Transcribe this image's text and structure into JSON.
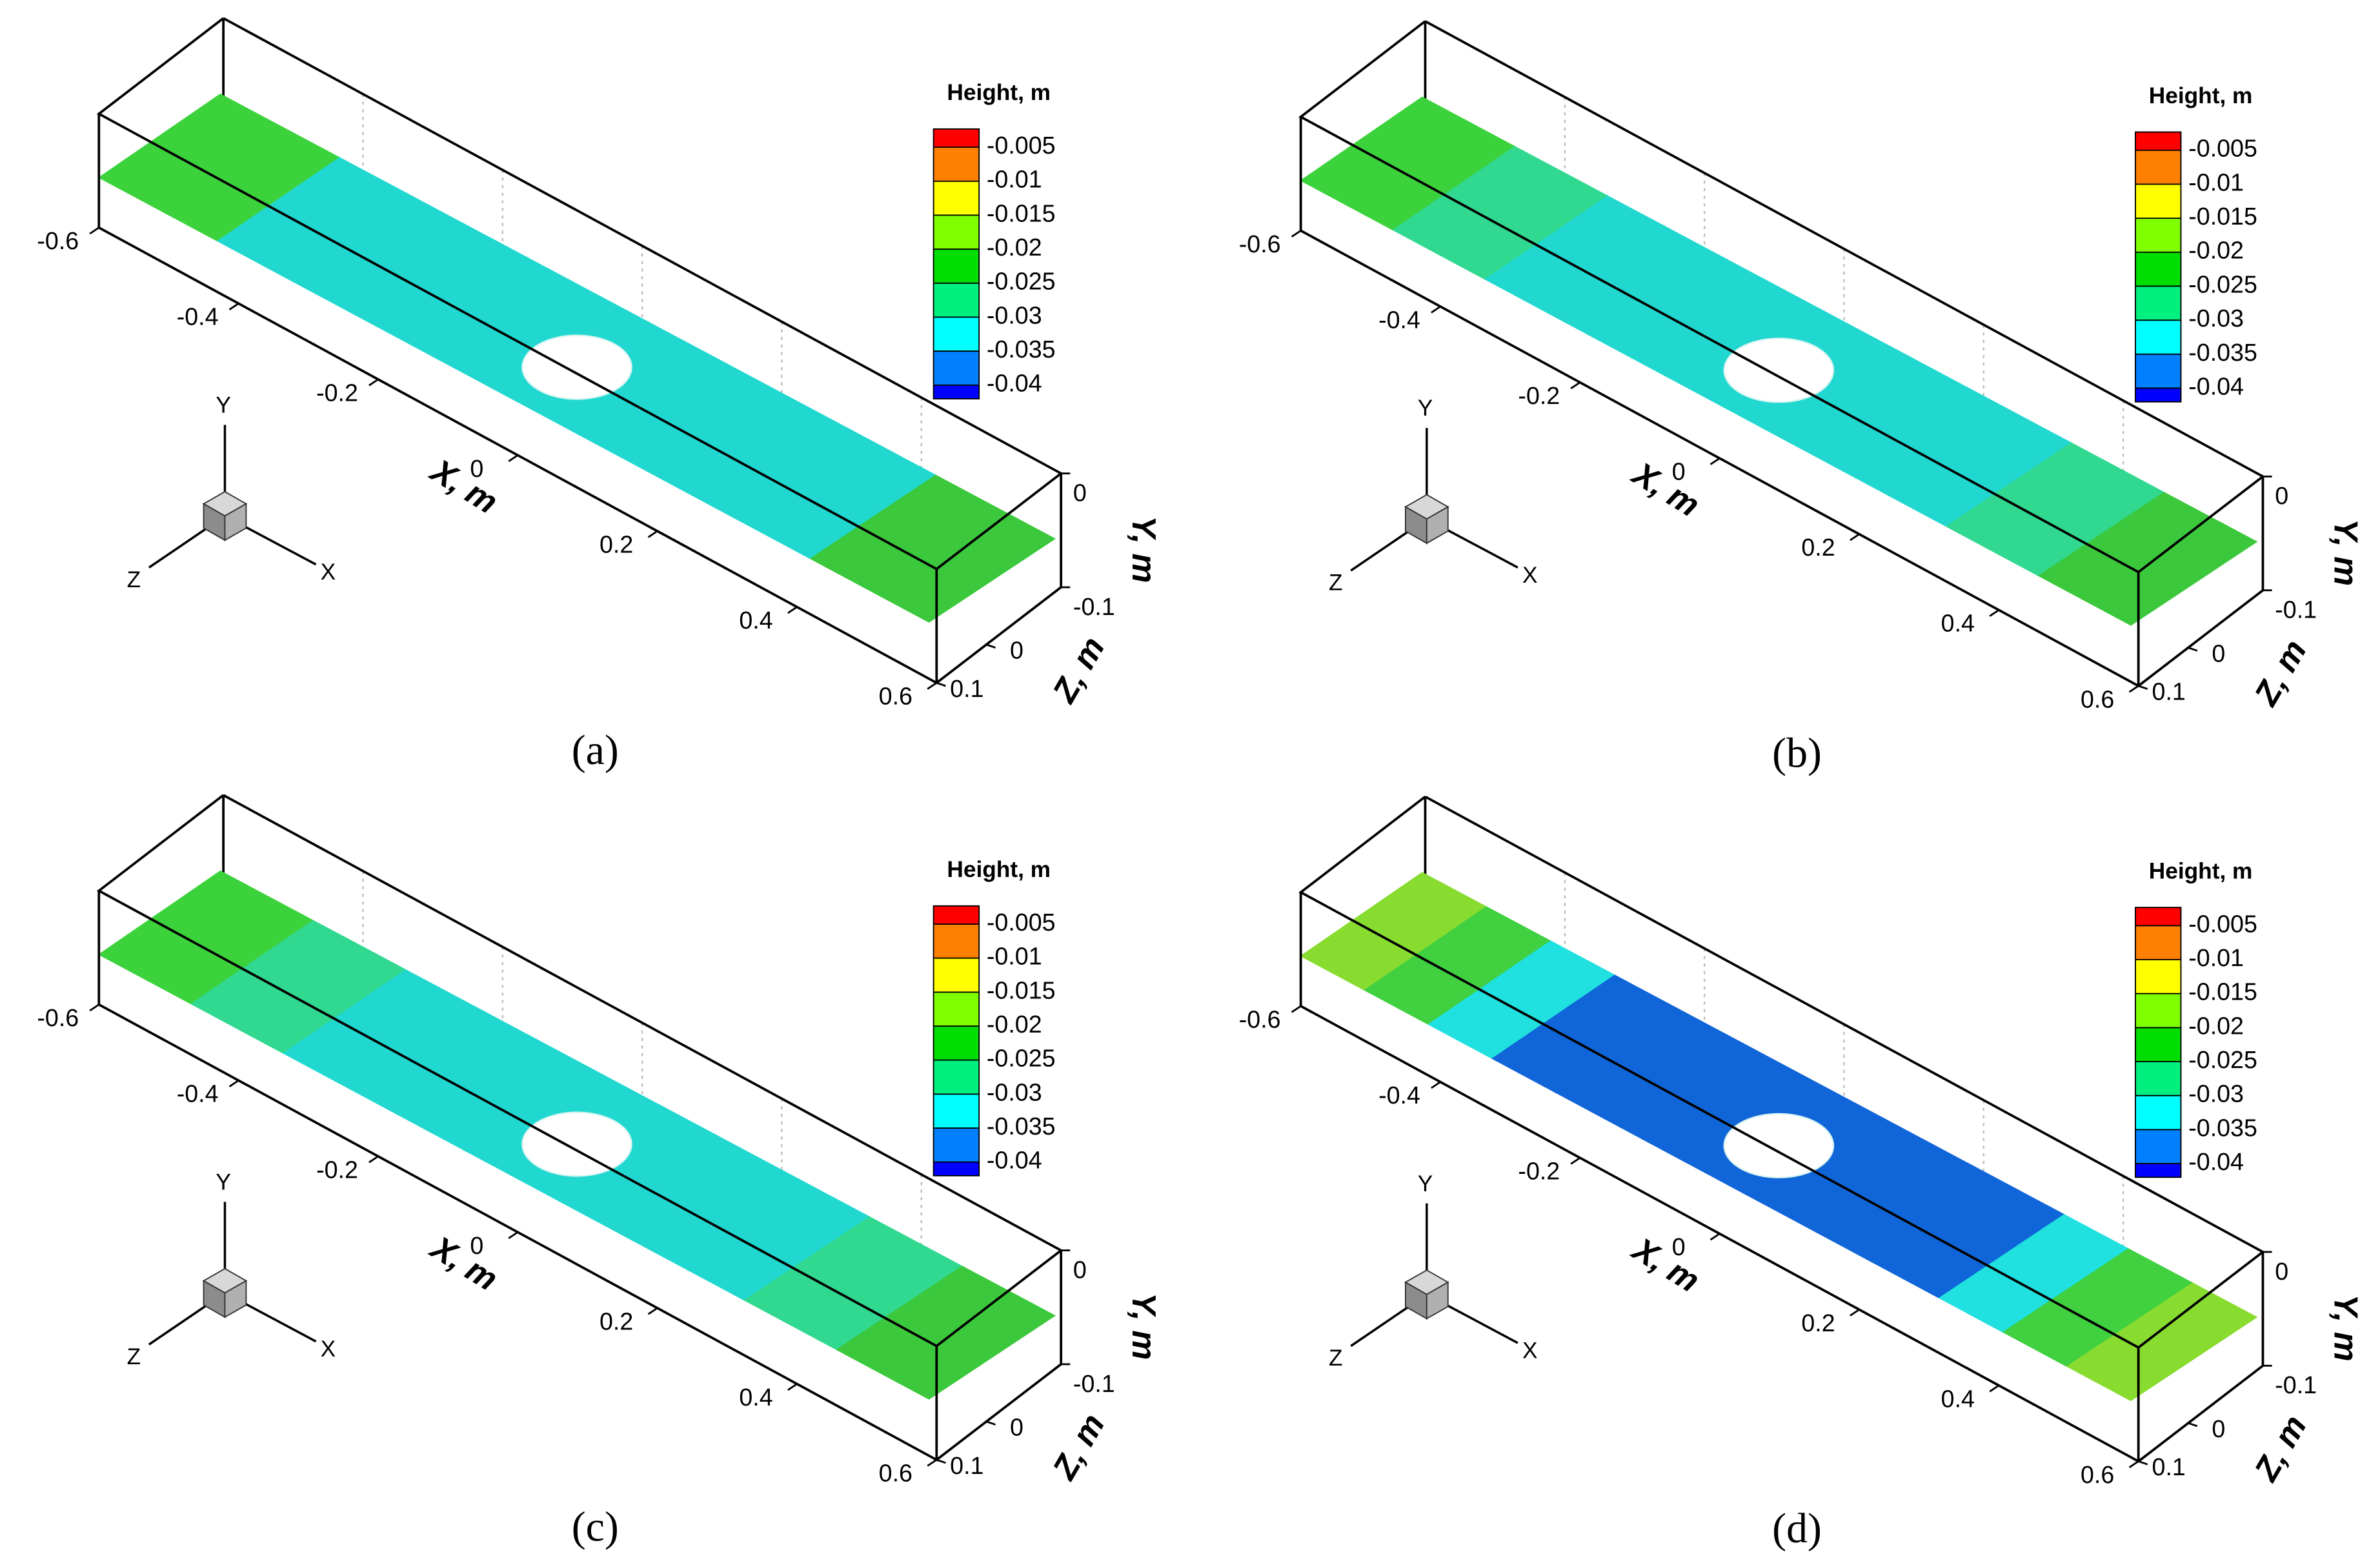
{
  "chart_data": [
    {
      "type": "contour3d",
      "label": "(a)",
      "legend_title": "Height, m",
      "levels": [
        -0.005,
        -0.01,
        -0.015,
        -0.02,
        -0.025,
        -0.03,
        -0.035,
        -0.04
      ],
      "colors": [
        "#ff0000",
        "#ff8000",
        "#ffff00",
        "#80ff00",
        "#00dd00",
        "#00f080",
        "#00ffff",
        "#0080ff",
        "#0000ff"
      ],
      "surface_colors": [
        "#3cd23c",
        "#20d8d0",
        "#20d8d0",
        "#20d8d0",
        "#20d8d0",
        "#20d8d0",
        "#3cc83c"
      ],
      "xlabel": "X, m",
      "ylabel": "Y, m",
      "zlabel": "Z, m",
      "xlim": [
        -0.6,
        0.6
      ],
      "xticks": [
        -0.6,
        -0.4,
        -0.2,
        0,
        0.2,
        0.4,
        0.6
      ],
      "ylim": [
        -0.1,
        0
      ],
      "yticks": [
        0,
        -0.1
      ],
      "zlim": [
        -0.15,
        0.1
      ],
      "zticks": [
        0,
        0.1
      ],
      "triad_labels": [
        "X",
        "Y",
        "Z"
      ],
      "grid": true
    },
    {
      "type": "contour3d",
      "label": "(b)",
      "legend_title": "Height, m",
      "levels": [
        -0.005,
        -0.01,
        -0.015,
        -0.02,
        -0.025,
        -0.03,
        -0.035,
        -0.04
      ],
      "colors": [
        "#ff0000",
        "#ff8000",
        "#ffff00",
        "#80ff00",
        "#00dd00",
        "#00f080",
        "#00ffff",
        "#0080ff",
        "#0000ff"
      ],
      "surface_colors": [
        "#3cd23c",
        "#30d890",
        "#20d8d0",
        "#20d8d0",
        "#20d8d0",
        "#20d8d0",
        "#20d8d0",
        "#30d890",
        "#3cc83c"
      ],
      "xlabel": "X, m",
      "ylabel": "Y, m",
      "zlabel": "Z, m",
      "xlim": [
        -0.6,
        0.6
      ],
      "xticks": [
        -0.6,
        -0.4,
        -0.2,
        0,
        0.2,
        0.4,
        0.6
      ],
      "ylim": [
        -0.1,
        0
      ],
      "yticks": [
        0,
        -0.1
      ],
      "zlim": [
        -0.15,
        0.1
      ],
      "zticks": [
        0,
        0.1
      ],
      "triad_labels": [
        "X",
        "Y",
        "Z"
      ],
      "grid": true
    },
    {
      "type": "contour3d",
      "label": "(c)",
      "legend_title": "Height, m",
      "levels": [
        -0.005,
        -0.01,
        -0.015,
        -0.02,
        -0.025,
        -0.03,
        -0.035,
        -0.04
      ],
      "colors": [
        "#ff0000",
        "#ff8000",
        "#ffff00",
        "#80ff00",
        "#00dd00",
        "#00f080",
        "#00ffff",
        "#0080ff",
        "#0000ff"
      ],
      "surface_colors": [
        "#3cd23c",
        "#30d890",
        "#20d8d0",
        "#20d8d0",
        "#20d8d0",
        "#20d8d0",
        "#20d8d0",
        "#30d890",
        "#3cc83c"
      ],
      "xlabel": "X, m",
      "ylabel": "Y, m",
      "zlabel": "Z, m",
      "xlim": [
        -0.6,
        0.6
      ],
      "xticks": [
        -0.6,
        -0.4,
        -0.2,
        0,
        0.2,
        0.4,
        0.6
      ],
      "ylim": [
        -0.1,
        0
      ],
      "yticks": [
        0,
        -0.1
      ],
      "zlim": [
        -0.15,
        0.1
      ],
      "zticks": [
        0,
        0.1
      ],
      "triad_labels": [
        "X",
        "Y",
        "Z"
      ],
      "grid": true
    },
    {
      "type": "contour3d",
      "label": "(d)",
      "legend_title": "Height, m",
      "levels": [
        -0.005,
        -0.01,
        -0.015,
        -0.02,
        -0.025,
        -0.03,
        -0.035,
        -0.04
      ],
      "colors": [
        "#ff0000",
        "#ff8000",
        "#ffff00",
        "#80ff00",
        "#00dd00",
        "#00f080",
        "#00ffff",
        "#0080ff",
        "#0000ff"
      ],
      "surface_colors": [
        "#88dc30",
        "#40d040",
        "#20e0e0",
        "#1066d8",
        "#1066d8",
        "#1066d8",
        "#1066d8",
        "#1066d8",
        "#1066d8",
        "#1066d8",
        "#20e0e0",
        "#40d040",
        "#88dc30"
      ],
      "xlabel": "X, m",
      "ylabel": "Y, m",
      "zlabel": "Z, m",
      "xlim": [
        -0.6,
        0.6
      ],
      "xticks": [
        -0.6,
        -0.4,
        -0.2,
        0,
        0.2,
        0.4,
        0.6
      ],
      "ylim": [
        -0.1,
        0
      ],
      "yticks": [
        0,
        -0.1
      ],
      "zlim": [
        -0.15,
        0.1
      ],
      "zticks": [
        0,
        0.1
      ],
      "triad_labels": [
        "X",
        "Y",
        "Z"
      ],
      "grid": true
    }
  ]
}
